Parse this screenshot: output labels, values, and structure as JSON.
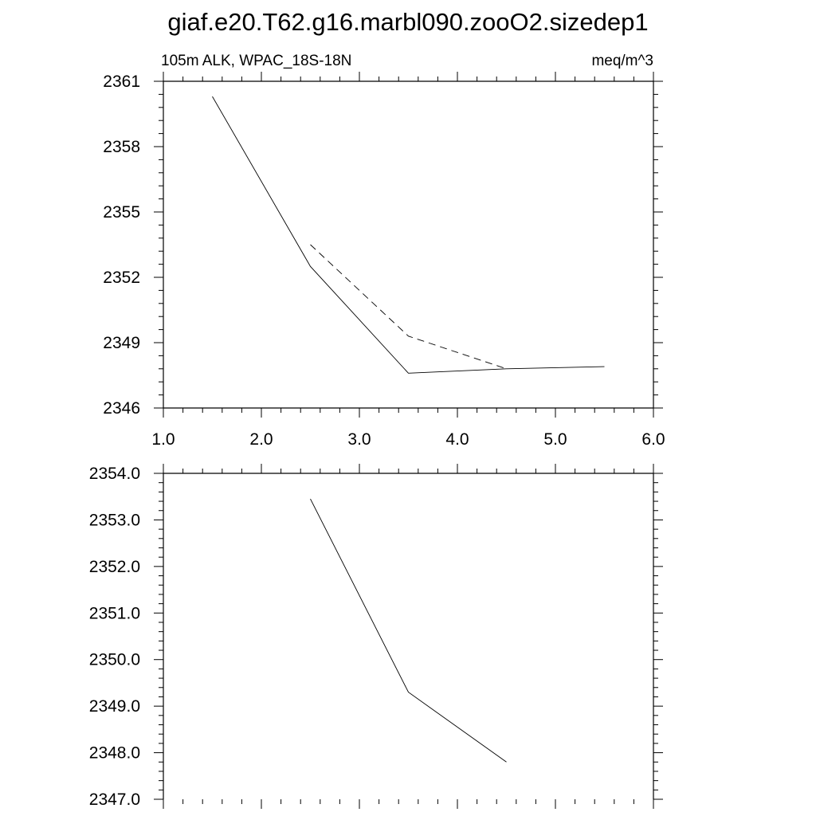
{
  "page_title": "giaf.e20.T62.g16.marbl090.zooO2.sizedep1",
  "chart_data": [
    {
      "type": "line",
      "left_label": "105m ALK, WPAC_18S-18N",
      "right_label": "meq/m^3",
      "xlim": [
        1.0,
        6.0
      ],
      "ylim": [
        2346,
        2361
      ],
      "x_ticks": [
        1.0,
        2.0,
        3.0,
        4.0,
        5.0,
        6.0
      ],
      "x_tick_labels": [
        "1.0",
        "2.0",
        "3.0",
        "4.0",
        "5.0",
        "6.0"
      ],
      "y_ticks": [
        2346,
        2349,
        2352,
        2355,
        2358,
        2361
      ],
      "y_tick_labels": [
        "2346",
        "2349",
        "2352",
        "2355",
        "2358",
        "2361"
      ],
      "grid": false,
      "series": [
        {
          "style": "solid",
          "x": [
            1.5,
            2.5,
            3.5,
            4.5,
            5.5
          ],
          "y": [
            2360.3,
            2352.5,
            2347.6,
            2347.8,
            2347.9
          ]
        },
        {
          "style": "dashed",
          "x": [
            2.5,
            3.5,
            4.5
          ],
          "y": [
            2353.5,
            2349.3,
            2347.8
          ]
        }
      ]
    },
    {
      "type": "line",
      "xlim": [
        1.0,
        6.0
      ],
      "ylim": [
        2347.0,
        2354.0
      ],
      "x_ticks": [
        1.0,
        2.0,
        3.0,
        4.0,
        5.0,
        6.0
      ],
      "y_ticks": [
        2347.0,
        2348.0,
        2349.0,
        2350.0,
        2351.0,
        2352.0,
        2353.0,
        2354.0
      ],
      "y_tick_labels": [
        "2347.0",
        "2348.0",
        "2349.0",
        "2350.0",
        "2351.0",
        "2352.0",
        "2353.0",
        "2354.0"
      ],
      "grid": false,
      "series": [
        {
          "style": "solid",
          "x": [
            2.5,
            3.5,
            4.5
          ],
          "y": [
            2353.45,
            2349.3,
            2347.8
          ]
        }
      ]
    }
  ]
}
